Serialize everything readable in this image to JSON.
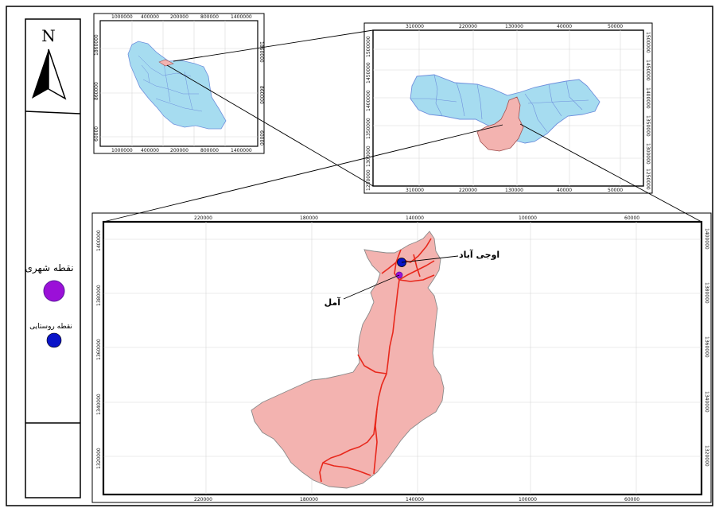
{
  "north_arrow": {
    "letter": "N"
  },
  "legend": {
    "urban": {
      "label": "نقطه شهری",
      "color": "#9b10d8"
    },
    "rural": {
      "label": "نقطه روستایی",
      "color": "#0a14c8"
    }
  },
  "colors": {
    "provinces_fill": "#a6dcf0",
    "provinces_stroke": "#6e8fdc",
    "study_area_fill": "#f3b3b0",
    "study_area_stroke": "#a05050",
    "roads": "#e8281c"
  },
  "iran_map": {
    "top_ticks": [
      "1000000",
      "400000",
      "200000",
      "800000",
      "1400000"
    ],
    "bottom_ticks": [
      "1000000",
      "400000",
      "200000",
      "800000",
      "1400000"
    ],
    "left_ticks": [
      "1860000",
      "860000",
      "60000"
    ],
    "right_ticks": [
      "1860000",
      "860000",
      "60000"
    ]
  },
  "province_map": {
    "top_ticks": [
      "310000",
      "220000",
      "130000",
      "40000",
      "50000"
    ],
    "bottom_ticks": [
      "310000",
      "220000",
      "130000",
      "40000",
      "50000"
    ],
    "left_ticks": [
      "1500000",
      "1450000",
      "1400000",
      "1350000",
      "1300000",
      "1250000"
    ],
    "right_ticks": [
      "1500000",
      "1450000",
      "1400000",
      "1350000",
      "1300000",
      "1250000"
    ]
  },
  "detail_map": {
    "top_ticks": [
      "220000",
      "180000",
      "140000",
      "100000",
      "60000"
    ],
    "bottom_ticks": [
      "220000",
      "180000",
      "140000",
      "100000",
      "60000"
    ],
    "left_ticks": [
      "1400000",
      "1380000",
      "1360000",
      "1340000",
      "1320000"
    ],
    "right_ticks": [
      "1400000",
      "1380000",
      "1360000",
      "1340000",
      "1320000"
    ],
    "places": {
      "village": "اوجی آباد",
      "city": "آمل"
    }
  }
}
